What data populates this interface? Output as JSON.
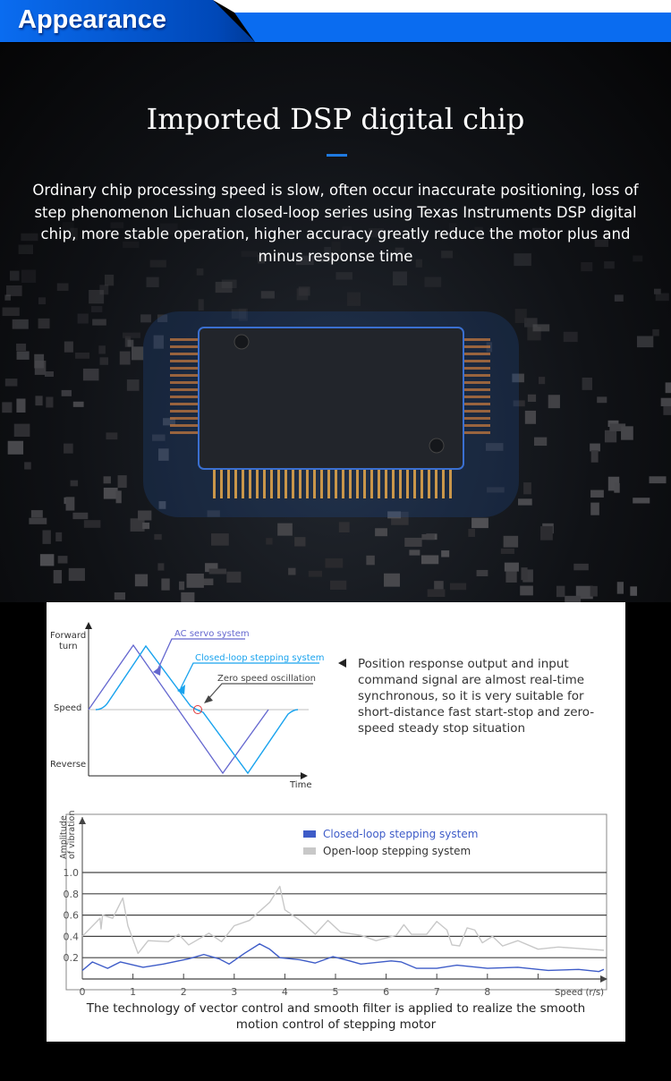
{
  "header": {
    "title": "Appearance",
    "colors": {
      "band": "#0a6cf0",
      "dark": "#0048b8"
    }
  },
  "hero": {
    "title": "Imported DSP digital chip",
    "description": "Ordinary chip processing speed is slow, often occur inaccurate positioning, loss of step phenomenon Lichuan closed-loop series using Texas Instruments DSP digital chip, more stable operation, higher accuracy greatly reduce the motor plus and minus response time",
    "accent": "#1f7ae0"
  },
  "response_chart": {
    "y_top": "Forward turn",
    "y_top_1": "Forward",
    "y_top_2": "turn",
    "y_mid": "Speed",
    "y_bottom": "Reverse",
    "x_label": "Time",
    "labels": {
      "ac": "AC servo system",
      "closed": "Closed-loop stepping system",
      "zero": "Zero speed oscillation"
    },
    "colors": {
      "ac": "#6467cf",
      "closed": "#19a3ee",
      "zero": "#e0363a"
    },
    "note": "Position response output and input command signal are almost real-time synchronous, so it is very suitable for short-distance fast start-stop and zero-speed steady stop situation"
  },
  "chart_data": {
    "type": "line",
    "ylabel": "Amplitude of vibration",
    "ylabel_1": "Amplitude",
    "ylabel_2": "of vibration",
    "xlabel": "Speed (r/s)",
    "x_ticks": [
      "0",
      "1",
      "2",
      "3",
      "4",
      "5",
      "6",
      "7",
      "8"
    ],
    "y_ticks": [
      "0.2",
      "0.4",
      "0.6",
      "0.8",
      "1.0"
    ],
    "xlim": [
      0,
      10.3
    ],
    "ylim": [
      0,
      1.5
    ],
    "grid": "horizontal",
    "legend": "top-center",
    "series": [
      {
        "name": "Closed-loop stepping system",
        "color": "#3e5cc8",
        "x": [
          0,
          0.2,
          0.5,
          0.75,
          1.2,
          1.6,
          2.1,
          2.4,
          2.7,
          2.9,
          3.2,
          3.5,
          3.7,
          3.9,
          4.3,
          4.6,
          4.95,
          5.2,
          5.5,
          6.1,
          6.3,
          6.6,
          7.0,
          7.4,
          8.0,
          8.6,
          9.2,
          9.8,
          10.2,
          10.3
        ],
        "y": [
          0.08,
          0.16,
          0.1,
          0.16,
          0.11,
          0.14,
          0.19,
          0.23,
          0.19,
          0.14,
          0.24,
          0.33,
          0.28,
          0.2,
          0.18,
          0.15,
          0.21,
          0.18,
          0.14,
          0.17,
          0.16,
          0.1,
          0.1,
          0.13,
          0.1,
          0.11,
          0.08,
          0.09,
          0.07,
          0.09
        ]
      },
      {
        "name": "Open-loop stepping system",
        "color": "#c8c8c8",
        "x": [
          0,
          0.35,
          0.37,
          0.4,
          0.6,
          0.8,
          0.9,
          1.1,
          1.3,
          1.7,
          1.9,
          2.1,
          2.5,
          2.75,
          3.0,
          3.3,
          3.7,
          3.9,
          4.0,
          4.3,
          4.6,
          4.85,
          5.1,
          5.5,
          5.8,
          6.2,
          6.35,
          6.5,
          6.8,
          7.0,
          7.2,
          7.3,
          7.45,
          7.6,
          7.75,
          7.9,
          8.1,
          8.3,
          8.6,
          9.0,
          9.4,
          10.0,
          10.3
        ],
        "y": [
          0.4,
          0.57,
          0.47,
          0.6,
          0.57,
          0.76,
          0.5,
          0.24,
          0.36,
          0.35,
          0.42,
          0.32,
          0.43,
          0.35,
          0.5,
          0.55,
          0.72,
          0.87,
          0.65,
          0.55,
          0.42,
          0.55,
          0.44,
          0.41,
          0.36,
          0.41,
          0.51,
          0.42,
          0.42,
          0.54,
          0.46,
          0.32,
          0.31,
          0.48,
          0.46,
          0.34,
          0.4,
          0.31,
          0.36,
          0.28,
          0.3,
          0.28,
          0.27
        ]
      }
    ]
  },
  "caption": "The technology of vector control and smooth filter is applied to realize the smooth motion control of stepping motor"
}
